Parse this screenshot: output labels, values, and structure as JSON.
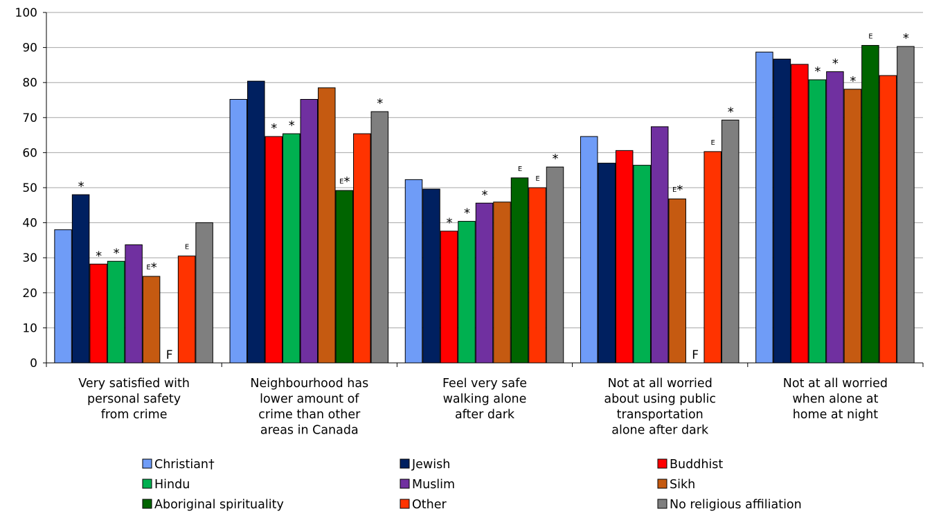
{
  "chart_data": {
    "type": "bar",
    "ylim": [
      0,
      100
    ],
    "yticks": [
      0,
      10,
      20,
      30,
      40,
      50,
      60,
      70,
      80,
      90,
      100
    ],
    "grid": true,
    "legend_position": "bottom",
    "categories": [
      [
        "Very satisfied with",
        "personal safety",
        "from crime"
      ],
      [
        "Neighbourhood has",
        "lower amount of",
        "crime than other",
        "areas in Canada"
      ],
      [
        "Feel very safe",
        "walking alone",
        "after dark"
      ],
      [
        "Not at all worried",
        "about using public",
        "transportation",
        "alone after dark"
      ],
      [
        "Not at all worried",
        "when alone at",
        "home at night"
      ]
    ],
    "series": [
      {
        "name": "Christian†",
        "color": "#6f9cf7",
        "values": [
          38,
          75.2,
          52.3,
          64.6,
          88.7
        ],
        "flags": [
          "",
          "",
          "",
          "",
          ""
        ]
      },
      {
        "name": "Jewish",
        "color": "#002060",
        "values": [
          48,
          80.4,
          49.6,
          57,
          86.7
        ],
        "flags": [
          "*",
          "",
          "",
          "",
          ""
        ]
      },
      {
        "name": "Buddhist",
        "color": "#ff0000",
        "values": [
          28.2,
          64.6,
          37.6,
          60.6,
          85.2
        ],
        "flags": [
          "*",
          "*",
          "*",
          "",
          ""
        ]
      },
      {
        "name": "Hindu",
        "color": "#00b050",
        "values": [
          29,
          65.4,
          40.4,
          56.4,
          80.8
        ],
        "flags": [
          "*",
          "*",
          "*",
          "",
          "*"
        ]
      },
      {
        "name": "Muslim",
        "color": "#7030a0",
        "values": [
          33.7,
          75.2,
          45.6,
          67.4,
          83.1
        ],
        "flags": [
          "",
          "",
          "*",
          "",
          "*"
        ]
      },
      {
        "name": "Sikh",
        "color": "#c55a11",
        "values": [
          24.7,
          78.5,
          45.9,
          46.8,
          78.1
        ],
        "flags": [
          "E*",
          "",
          "",
          "E*",
          "*"
        ]
      },
      {
        "name": "Aboriginal spirituality",
        "color": "#006400",
        "values": [
          null,
          49.2,
          52.8,
          null,
          90.6
        ],
        "flags": [
          "F",
          "E*",
          "E",
          "F",
          "E"
        ]
      },
      {
        "name": "Other",
        "color": "#ff3300",
        "values": [
          30.5,
          65.4,
          50,
          60.3,
          82
        ],
        "flags": [
          "E",
          "",
          "E",
          "E",
          ""
        ]
      },
      {
        "name": "No religious affiliation",
        "color": "#7f7f7f",
        "values": [
          40,
          71.7,
          55.9,
          69.3,
          90.3
        ],
        "flags": [
          "",
          "*",
          "*",
          "*",
          "*"
        ]
      }
    ]
  }
}
